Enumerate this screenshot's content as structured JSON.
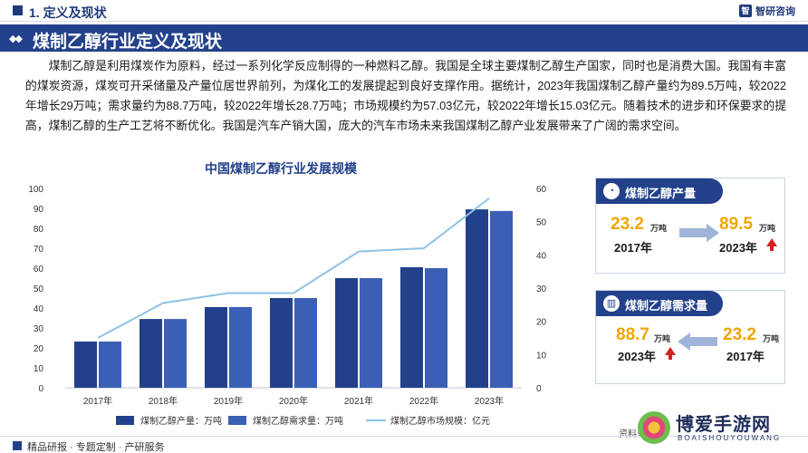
{
  "header": {
    "section_label": "1. 定义及现状",
    "logo_text": "智研咨询",
    "logo_mark": "智"
  },
  "title": "煤制乙醇行业定义及现状",
  "paragraph": "煤制乙醇是利用煤炭作为原料，经过一系列化学反应制得的一种燃料乙醇。我国是全球主要煤制乙醇生产国家，同时也是消费大国。我国有丰富的煤炭资源，煤炭可开采储量及产量位居世界前列，为煤化工的发展提起到良好支撑作用。据统计，2023年我国煤制乙醇产量约为89.5万吨，较2022年增长29万吨；需求量约为88.7万吨，较2022年增长28.7万吨；市场规模约为57.03亿元，较2022年增长15.03亿元。随着技术的进步和环保要求的提高，煤制乙醇的生产工艺将不断优化。我国是汽车产销大国，庞大的汽车市场未来我国煤制乙醇产业发展带来了广阔的需求空间。",
  "chart_data": {
    "type": "bar",
    "title": "中国煤制乙醇行业发展规模",
    "categories": [
      "2017年",
      "2018年",
      "2019年",
      "2020年",
      "2021年",
      "2022年",
      "2023年"
    ],
    "series": [
      {
        "name": "煤制乙醇产量：万吨",
        "type": "bar",
        "axis": "left",
        "color": "#22418a",
        "values": [
          23.2,
          34.5,
          40.5,
          45,
          55,
          60.5,
          89.5
        ]
      },
      {
        "name": "煤制乙醇需求量：万吨",
        "type": "bar",
        "axis": "left",
        "color": "#3a5fb5",
        "values": [
          23.2,
          34.5,
          40.5,
          45,
          55,
          60,
          88.7
        ]
      },
      {
        "name": "煤制乙醇市场规模：亿元",
        "type": "line",
        "axis": "right",
        "color": "#8ec2e6",
        "values": [
          15,
          25.5,
          28.5,
          28.5,
          41,
          42,
          57.03
        ]
      }
    ],
    "ylim_left": [
      0,
      100
    ],
    "yticks_left": [
      "0",
      "10",
      "20",
      "30",
      "40",
      "50",
      "60",
      "70",
      "80",
      "90",
      "100"
    ],
    "ylim_right": [
      0,
      60
    ],
    "yticks_right": [
      "0",
      "10",
      "20",
      "30",
      "40",
      "50",
      "60"
    ],
    "legend_position": "bottom",
    "grid": false
  },
  "cards": [
    {
      "label": "煤制乙醇产量",
      "icon": "chart-icon",
      "from_value": "23.2",
      "from_unit": "万吨",
      "from_year": "2017年",
      "to_value": "89.5",
      "to_unit": "万吨",
      "to_year": "2023年"
    },
    {
      "label": "煤制乙醇需求量",
      "icon": "bar-chart-icon",
      "left_value": "88.7",
      "left_unit": "万吨",
      "left_year": "2023年",
      "right_value": "23.2",
      "right_unit": "万吨",
      "right_year": "2017年"
    }
  ],
  "footer": {
    "text": "精品研报 · 专题定制 · 产研服务",
    "source": "资料来"
  },
  "watermark": {
    "title": "博爱手游网",
    "subtitle": "BOAISHOUYOUWANG"
  }
}
